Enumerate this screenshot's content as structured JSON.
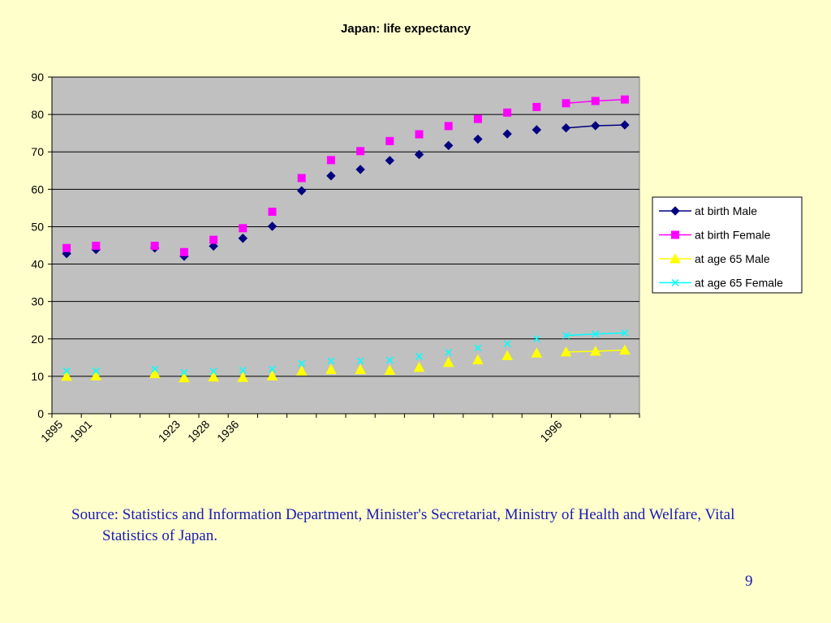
{
  "chart_data": {
    "type": "line",
    "title": "Japan: life expectancy",
    "xlabel": "",
    "ylabel": "",
    "ylim": [
      0,
      90
    ],
    "yticks": [
      0,
      10,
      20,
      30,
      40,
      50,
      60,
      70,
      80,
      90
    ],
    "x_tick_labels": [
      {
        "index": 0,
        "label": "1895"
      },
      {
        "index": 1,
        "label": "1901"
      },
      {
        "index": 4,
        "label": "1923"
      },
      {
        "index": 5,
        "label": "1928"
      },
      {
        "index": 6,
        "label": "1936"
      },
      {
        "index": 17,
        "label": "1996"
      }
    ],
    "categories": [
      "1895",
      "1901",
      "",
      "",
      "1923",
      "1928",
      "1936",
      "",
      "",
      "",
      "",
      "",
      "",
      "",
      "",
      "",
      "",
      "1996",
      "",
      ""
    ],
    "grid": true,
    "legend_position": "right",
    "series": [
      {
        "name": "at birth Male",
        "color": "#000080",
        "marker": "diamond",
        "values": [
          42.8,
          43.9,
          null,
          44.3,
          42.1,
          44.8,
          46.9,
          50.1,
          59.6,
          63.6,
          65.3,
          67.7,
          69.3,
          71.7,
          73.4,
          74.8,
          75.9,
          76.4,
          77.0,
          77.2
        ],
        "connected_from": 17
      },
      {
        "name": "at birth Female",
        "color": "#FF00FF",
        "marker": "square",
        "values": [
          44.3,
          44.9,
          null,
          44.9,
          43.2,
          46.5,
          49.6,
          54.0,
          63.0,
          67.8,
          70.2,
          72.9,
          74.7,
          76.9,
          78.8,
          80.5,
          82.0,
          83.0,
          83.6,
          84.0
        ],
        "connected_from": 17
      },
      {
        "name": "at age 65 Male",
        "color": "#FFFF00",
        "marker": "triangle",
        "values": [
          10.0,
          10.1,
          null,
          10.7,
          9.6,
          9.8,
          9.7,
          10.1,
          11.4,
          11.8,
          11.8,
          11.6,
          12.4,
          13.7,
          14.4,
          15.5,
          16.2,
          16.5,
          16.7,
          17.0
        ],
        "connected_from": 17
      },
      {
        "name": "at age 65 Female",
        "color": "#00FFFF",
        "marker": "x",
        "values": [
          11.4,
          11.4,
          null,
          11.9,
          11.0,
          11.3,
          11.6,
          11.9,
          13.4,
          14.1,
          14.1,
          14.3,
          15.3,
          16.4,
          17.6,
          18.7,
          20.0,
          20.9,
          21.3,
          21.6
        ],
        "connected_from": 17
      }
    ]
  },
  "footer": {
    "source": "Source: Statistics and Information Department, Minister's Secretariat, Ministry of Health and Welfare, Vital Statistics of Japan.",
    "page_number": "9"
  }
}
